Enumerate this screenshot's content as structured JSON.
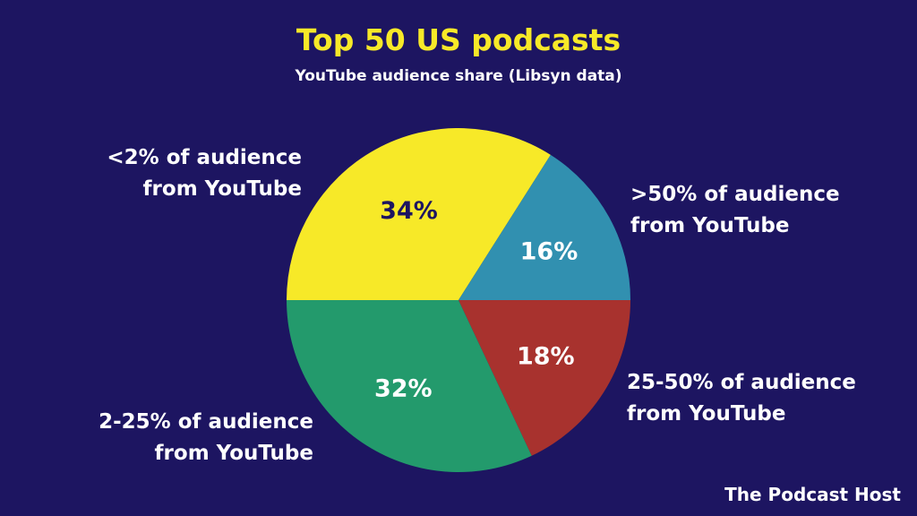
{
  "colors": {
    "background": "#1d1561",
    "title": "#f7e928",
    "text": "#ffffff",
    "slice_dark_text": "#1d1561"
  },
  "chart_data": {
    "type": "pie",
    "title": "Top 50 US podcasts",
    "subtitle": "YouTube audience share (Libsyn data)",
    "slices": [
      {
        "label_line1": "<2% of audience",
        "label_line2": "from YouTube",
        "value": 34,
        "value_label": "34%",
        "color": "#f7e928",
        "value_color": "#1d1561"
      },
      {
        "label_line1": ">50% of audience",
        "label_line2": "from YouTube",
        "value": 16,
        "value_label": "16%",
        "color": "#3190b0",
        "value_color": "#ffffff"
      },
      {
        "label_line1": "25-50% of audience",
        "label_line2": "from YouTube",
        "value": 18,
        "value_label": "18%",
        "color": "#a8322e",
        "value_color": "#ffffff"
      },
      {
        "label_line1": "2-25% of audience",
        "label_line2": "from YouTube",
        "value": 32,
        "value_label": "32%",
        "color": "#239a6c",
        "value_color": "#ffffff"
      }
    ]
  },
  "brand": {
    "text": "The Podcast Host"
  }
}
